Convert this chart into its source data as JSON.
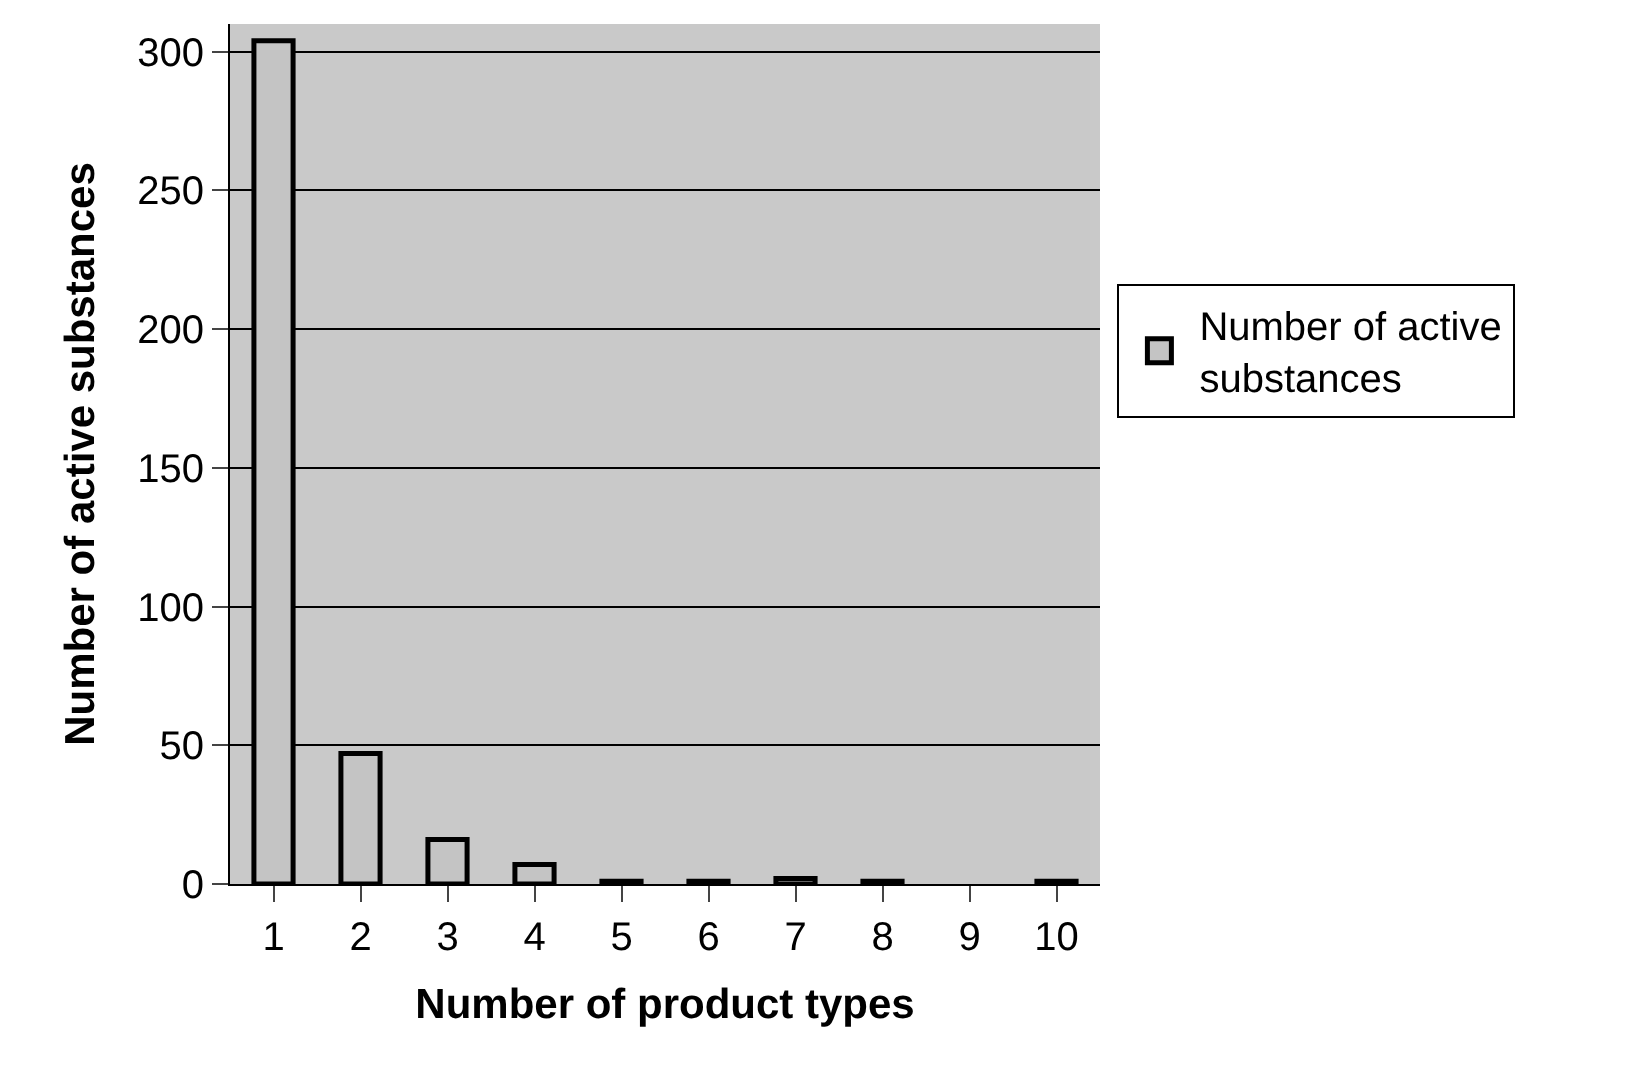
{
  "chart_data": {
    "type": "bar",
    "xlabel": "Number of product types",
    "ylabel": "Number of active substances",
    "categories": [
      "1",
      "2",
      "3",
      "4",
      "5",
      "6",
      "7",
      "8",
      "9",
      "10"
    ],
    "series": [
      {
        "name": "Number of active substances",
        "color": "#c4c4c4",
        "values": [
          304,
          47,
          16,
          7,
          1,
          1,
          2,
          1,
          0,
          1
        ]
      }
    ],
    "ylim": [
      0,
      310
    ],
    "yticks": [
      0,
      50,
      100,
      150,
      200,
      250,
      300
    ],
    "grid": "y",
    "legend": "right"
  }
}
